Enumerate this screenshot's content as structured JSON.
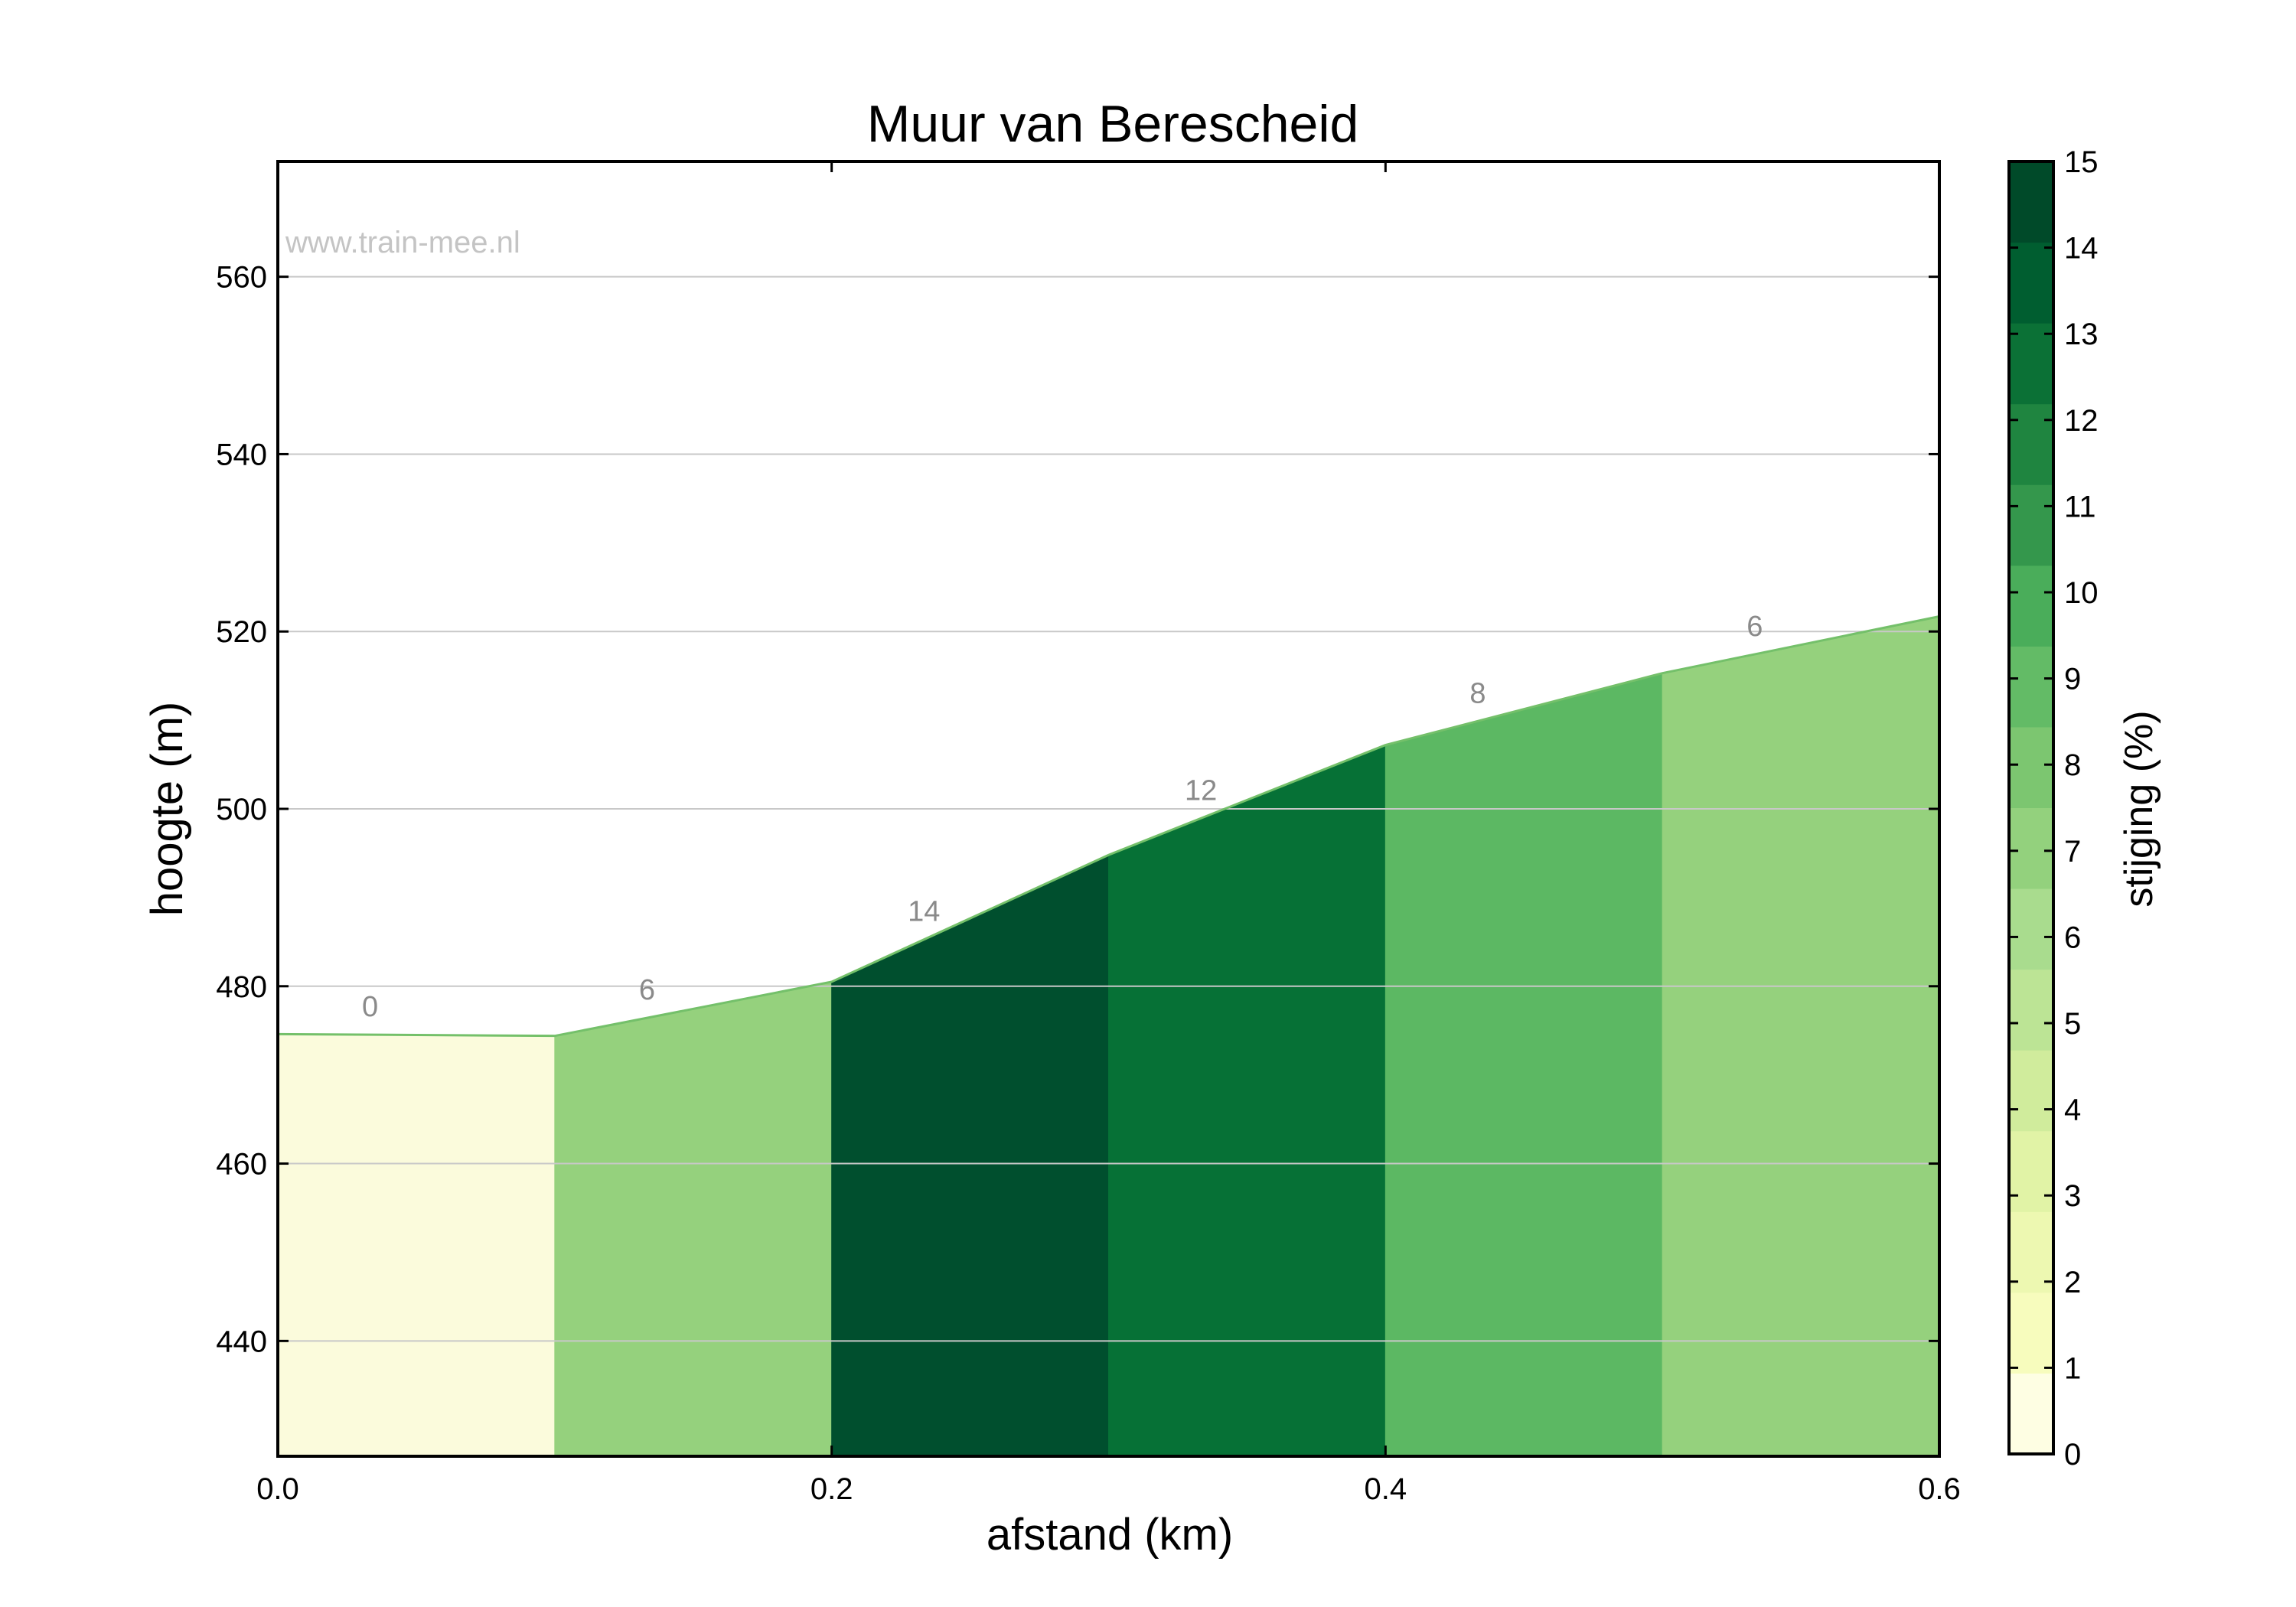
{
  "chart_data": {
    "type": "area",
    "title": "Muur van Berescheid",
    "watermark": "www.train-mee.nl",
    "xlabel": "afstand (km)",
    "ylabel": "hoogte (m)",
    "xlim": [
      0.0,
      0.6
    ],
    "ylim": [
      427,
      573
    ],
    "xticks": [
      "0.0",
      "0.2",
      "0.4",
      "0.6"
    ],
    "yticks": [
      "440",
      "460",
      "480",
      "500",
      "520",
      "540",
      "560"
    ],
    "grid": true,
    "profile": {
      "x": [
        0.0,
        0.1,
        0.2,
        0.3,
        0.4,
        0.5,
        0.6
      ],
      "y": [
        474.6,
        474.4,
        480.5,
        494.8,
        507.2,
        515.3,
        521.7
      ]
    },
    "segments": [
      {
        "label": "0",
        "gradient": 0,
        "color": "#fbfbdc"
      },
      {
        "label": "6",
        "gradient": 6,
        "color": "#95d17d"
      },
      {
        "label": "14",
        "gradient": 14,
        "color": "#004f2e"
      },
      {
        "label": "12",
        "gradient": 12,
        "color": "#067136"
      },
      {
        "label": "8",
        "gradient": 8,
        "color": "#5cb863"
      },
      {
        "label": "6",
        "gradient": 6,
        "color": "#95d17d"
      }
    ],
    "colorbar": {
      "label": "stijging (%)",
      "range": [
        0,
        15
      ],
      "ticks": [
        "0",
        "1",
        "2",
        "3",
        "4",
        "5",
        "6",
        "7",
        "8",
        "9",
        "10",
        "11",
        "12",
        "13",
        "14",
        "15"
      ],
      "colors": [
        "#fefee3",
        "#f7fcbd",
        "#edf8b1",
        "#e1f3a6",
        "#d0ec9c",
        "#bce495",
        "#a9dc8e",
        "#93d17d",
        "#7cc670",
        "#63bb66",
        "#4aad5a",
        "#34974c",
        "#1f8540",
        "#0b7136",
        "#005e30",
        "#004a29"
      ]
    }
  }
}
